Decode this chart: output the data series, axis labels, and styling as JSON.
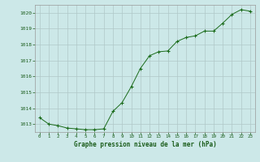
{
  "hours": [
    0,
    1,
    2,
    3,
    4,
    5,
    6,
    7,
    8,
    9,
    10,
    11,
    12,
    13,
    14,
    15,
    16,
    17,
    18,
    19,
    20,
    21,
    22,
    23
  ],
  "pressure": [
    1013.4,
    1013.0,
    1012.9,
    1012.75,
    1012.7,
    1012.65,
    1012.65,
    1012.7,
    1013.8,
    1014.35,
    1015.35,
    1016.5,
    1017.3,
    1017.55,
    1017.6,
    1018.2,
    1018.45,
    1018.55,
    1018.85,
    1018.85,
    1019.35,
    1019.9,
    1020.2,
    1020.1
  ],
  "ylim": [
    1012.5,
    1020.5
  ],
  "yticks": [
    1013,
    1014,
    1015,
    1016,
    1017,
    1018,
    1019,
    1020
  ],
  "xticks": [
    0,
    1,
    2,
    3,
    4,
    5,
    6,
    7,
    8,
    9,
    10,
    11,
    12,
    13,
    14,
    15,
    16,
    17,
    18,
    19,
    20,
    21,
    22,
    23
  ],
  "line_color": "#1a6b1a",
  "marker_color": "#1a6b1a",
  "bg_color": "#cce8e8",
  "grid_color": "#b0c8c8",
  "xlabel": "Graphe pression niveau de la mer (hPa)"
}
